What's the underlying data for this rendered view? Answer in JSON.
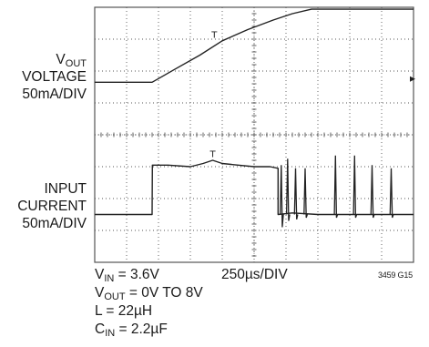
{
  "vout_label": {
    "line1_main": "V",
    "line1_sub": "OUT",
    "line2": "VOLTAGE",
    "line3": "50mA/DIV"
  },
  "input_label": {
    "line1": "INPUT",
    "line2": "CURRENT",
    "line3": "50mA/DIV"
  },
  "conditions": [
    {
      "main": "V",
      "sub": "IN",
      "rest": " = 3.6V"
    },
    {
      "main": "V",
      "sub": "OUT",
      "rest": " = 0V TO 8V"
    },
    {
      "main": "L = 22µH",
      "sub": "",
      "rest": ""
    },
    {
      "main": "C",
      "sub": "IN",
      "rest": " = 2.2µF"
    }
  ],
  "timebase": "250µs/DIV",
  "figure_code": "3459 G15",
  "chart_data": {
    "type": "line",
    "x_unit": "div",
    "xlim": [
      0,
      10
    ],
    "ylim": [
      0,
      8
    ],
    "grid": true,
    "trace_color": "#222222",
    "grid_color": "#555555",
    "series": [
      {
        "x": [
          0,
          1.8,
          2.5,
          3.3,
          4.0,
          4.8,
          5.6,
          6.2,
          6.8,
          7.3,
          10
        ],
        "y": [
          5.65,
          5.65,
          6.05,
          6.5,
          6.95,
          7.3,
          7.6,
          7.8,
          7.94,
          7.94,
          7.94
        ],
        "markers": [
          {
            "x": 3.75,
            "y": 7.05,
            "symbol": "T"
          }
        ]
      },
      {
        "x": [
          0,
          1.8,
          1.81,
          2.3,
          3.0,
          3.4,
          3.7,
          4.0,
          4.5,
          5.0,
          5.5,
          5.75,
          5.75,
          6.2,
          7.0,
          8.0,
          9.0,
          10
        ],
        "y": [
          1.5,
          1.5,
          3.05,
          3.05,
          3.0,
          3.1,
          3.2,
          3.1,
          3.05,
          3.0,
          3.0,
          2.95,
          1.5,
          1.55,
          1.5,
          1.5,
          1.5,
          1.5
        ],
        "markers": [
          {
            "x": 3.7,
            "y": 3.3,
            "symbol": "T"
          }
        ],
        "spikes": [
          {
            "x": 5.85,
            "y_peak": 3.05,
            "y_dip": 1.1
          },
          {
            "x": 6.05,
            "y_peak": 3.25,
            "y_dip": 1.3
          },
          {
            "x": 6.3,
            "y_peak": 2.95,
            "y_dip": 1.35
          },
          {
            "x": 6.6,
            "y_peak": 2.95,
            "y_dip": 1.4
          },
          {
            "x": 7.55,
            "y_peak": 3.35,
            "y_dip": 1.4
          },
          {
            "x": 8.15,
            "y_peak": 3.35,
            "y_dip": 1.4
          },
          {
            "x": 8.7,
            "y_peak": 3.05,
            "y_dip": 1.4
          },
          {
            "x": 9.3,
            "y_peak": 2.95,
            "y_dip": 1.4
          }
        ]
      }
    ]
  }
}
